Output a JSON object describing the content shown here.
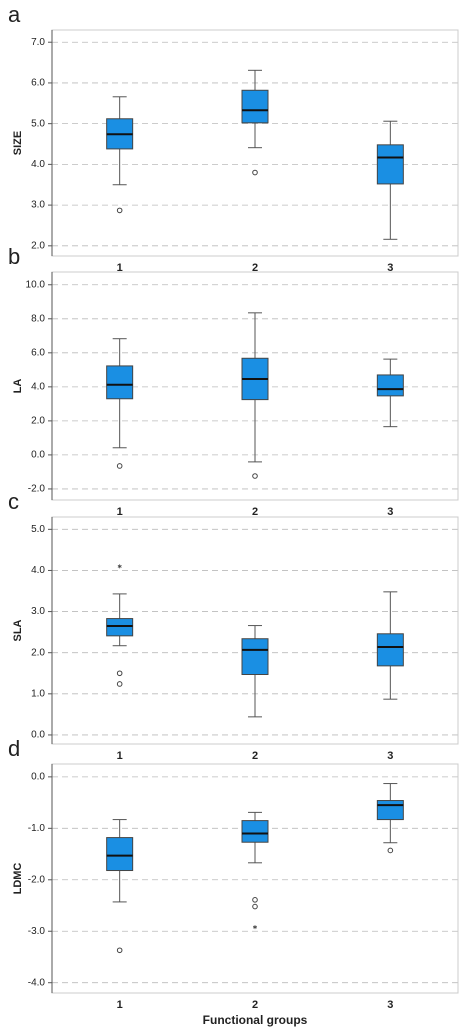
{
  "chart_data": [
    {
      "type": "box",
      "panel": "a",
      "ylabel": "SIZE",
      "categories": [
        "1",
        "2",
        "3"
      ],
      "color": "#1a8fe3",
      "grid": true,
      "ylim": [
        1.75,
        7.3
      ],
      "yticks": [
        {
          "value": 2,
          "label": "2.0"
        },
        {
          "value": 3,
          "label": "3.0"
        },
        {
          "value": 4,
          "label": "4.0"
        },
        {
          "value": 5,
          "label": "5.0"
        },
        {
          "value": 6,
          "label": "6.0"
        },
        {
          "value": 7,
          "label": "7.0"
        }
      ],
      "boxes": [
        {
          "whislo": 3.5,
          "q1": 4.38,
          "median": 4.74,
          "q3": 5.12,
          "whishi": 5.66,
          "outliers": [
            2.87
          ]
        },
        {
          "whislo": 4.41,
          "q1": 5.02,
          "median": 5.33,
          "q3": 5.82,
          "whishi": 6.31,
          "outliers": [
            3.8
          ]
        },
        {
          "whislo": 2.16,
          "q1": 3.52,
          "median": 4.17,
          "q3": 4.48,
          "whishi": 5.06
        }
      ]
    },
    {
      "type": "box",
      "panel": "b",
      "ylabel": "LA",
      "categories": [
        "1",
        "2",
        "3"
      ],
      "color": "#1a8fe3",
      "grid": true,
      "ylim": [
        -2.65,
        10.75
      ],
      "yticks": [
        {
          "value": -2,
          "label": "-2.0"
        },
        {
          "value": 0,
          "label": "0.0"
        },
        {
          "value": 2,
          "label": "2.0"
        },
        {
          "value": 4,
          "label": "4.0"
        },
        {
          "value": 6,
          "label": "6.0"
        },
        {
          "value": 8,
          "label": "8.0"
        },
        {
          "value": 10,
          "label": "10.0"
        }
      ],
      "boxes": [
        {
          "whislo": 0.42,
          "q1": 3.3,
          "median": 4.12,
          "q3": 5.23,
          "whishi": 6.83,
          "outliers": [
            -0.65
          ]
        },
        {
          "whislo": -0.41,
          "q1": 3.25,
          "median": 4.46,
          "q3": 5.68,
          "whishi": 8.35,
          "outliers": [
            -1.24
          ]
        },
        {
          "whislo": 1.66,
          "q1": 3.47,
          "median": 3.87,
          "q3": 4.7,
          "whishi": 5.63
        }
      ]
    },
    {
      "type": "box",
      "panel": "c",
      "ylabel": "SLA",
      "categories": [
        "1",
        "2",
        "3"
      ],
      "color": "#1a8fe3",
      "grid": true,
      "ylim": [
        -0.22,
        5.3
      ],
      "yticks": [
        {
          "value": 0,
          "label": "0.0"
        },
        {
          "value": 1,
          "label": "1.0"
        },
        {
          "value": 2,
          "label": "2.0"
        },
        {
          "value": 3,
          "label": "3.0"
        },
        {
          "value": 4,
          "label": "4.0"
        },
        {
          "value": 5,
          "label": "5.0"
        }
      ],
      "boxes": [
        {
          "whislo": 2.17,
          "q1": 2.41,
          "median": 2.65,
          "q3": 2.83,
          "whishi": 3.43,
          "outliers": [
            1.5,
            1.24
          ],
          "extremes": [
            4.1
          ]
        },
        {
          "whislo": 0.44,
          "q1": 1.47,
          "median": 2.07,
          "q3": 2.34,
          "whishi": 2.66
        },
        {
          "whislo": 0.87,
          "q1": 1.68,
          "median": 2.14,
          "q3": 2.46,
          "whishi": 3.48
        }
      ]
    },
    {
      "type": "box",
      "panel": "d",
      "ylabel": "LDMC",
      "xlabel": "Functional groups",
      "categories": [
        "1",
        "2",
        "3"
      ],
      "color": "#1a8fe3",
      "grid": true,
      "ylim": [
        -4.2,
        0.25
      ],
      "yticks": [
        {
          "value": -4,
          "label": "-4.0"
        },
        {
          "value": -3,
          "label": "-3.0"
        },
        {
          "value": -2,
          "label": "-2.0"
        },
        {
          "value": -1,
          "label": "-1.0"
        },
        {
          "value": 0,
          "label": "0.0"
        }
      ],
      "boxes": [
        {
          "whislo": -2.43,
          "q1": -1.82,
          "median": -1.53,
          "q3": -1.18,
          "whishi": -0.83,
          "outliers": [
            -3.37
          ]
        },
        {
          "whislo": -1.67,
          "q1": -1.27,
          "median": -1.1,
          "q3": -0.85,
          "whishi": -0.69,
          "outliers": [
            -2.39,
            -2.52
          ],
          "extremes": [
            -2.92
          ]
        },
        {
          "whislo": -1.28,
          "q1": -0.83,
          "median": -0.55,
          "q3": -0.46,
          "whishi": -0.13,
          "outliers": [
            -1.43
          ]
        }
      ]
    }
  ]
}
